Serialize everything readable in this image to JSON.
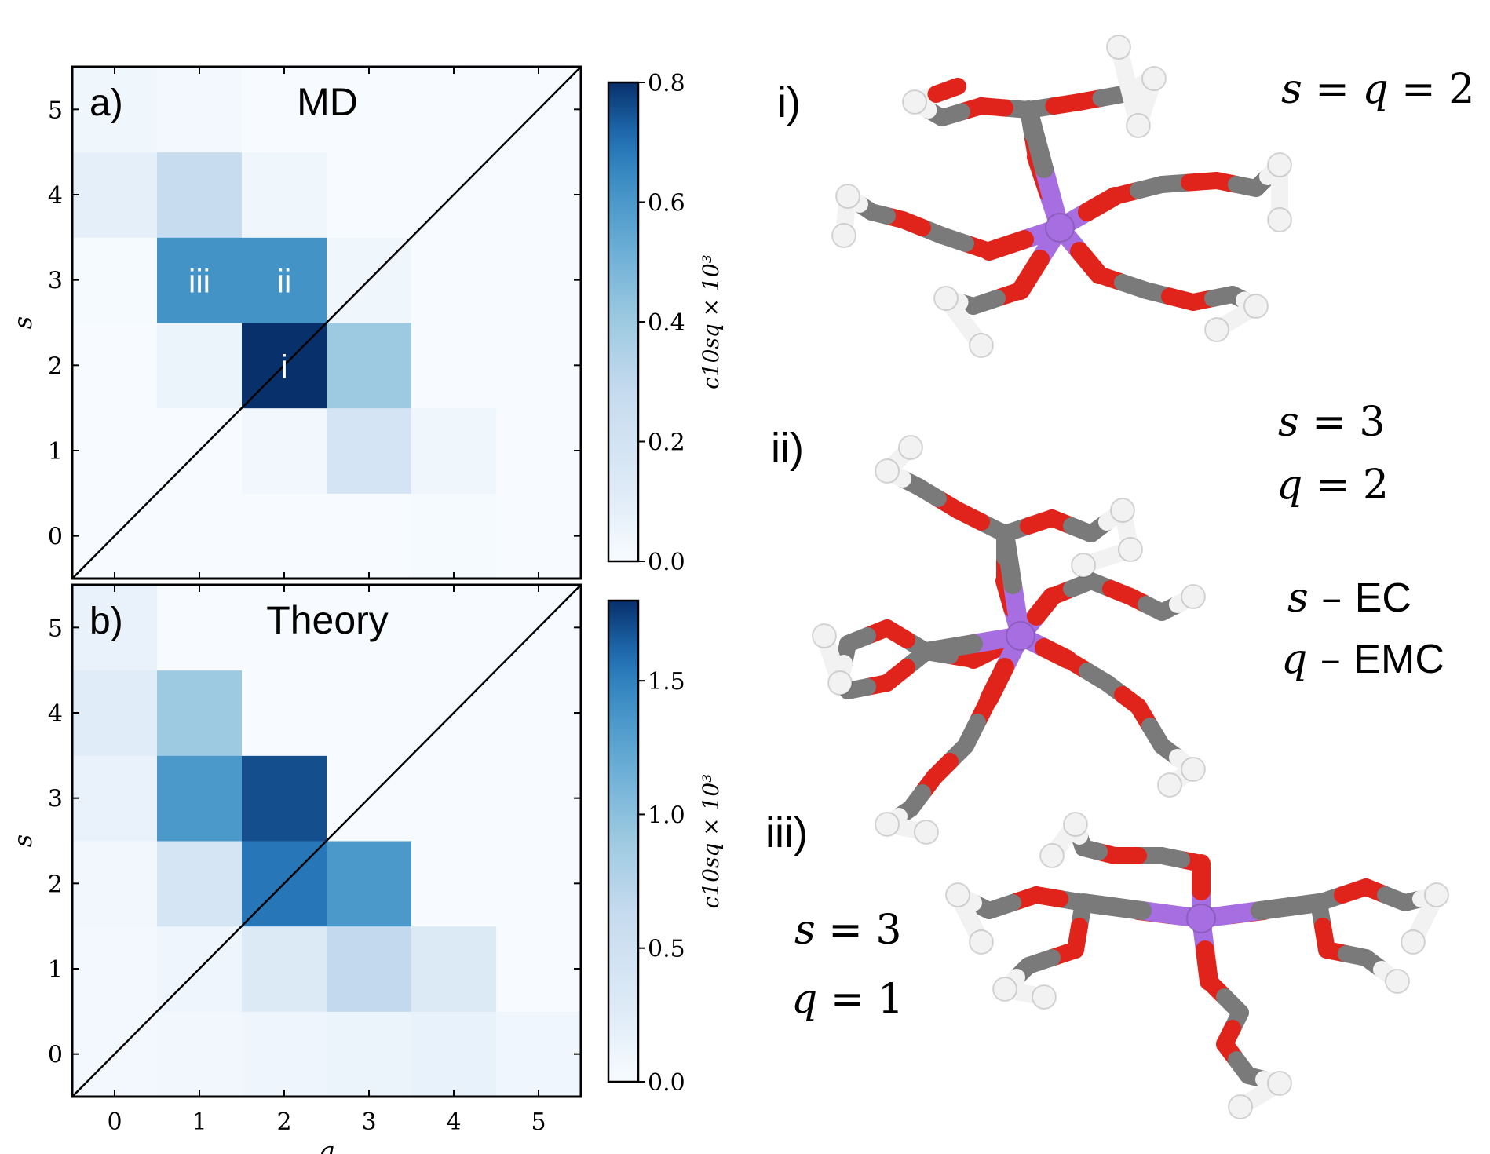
{
  "chart_data": [
    {
      "type": "heatmap",
      "panel_label": "a)",
      "title": "MD",
      "xlabel": "q",
      "ylabel": "s",
      "x_ticks": [
        "0",
        "1",
        "2",
        "3",
        "4",
        "5"
      ],
      "y_ticks": [
        "0",
        "1",
        "2",
        "3",
        "4",
        "5"
      ],
      "colorbar_label": "c10sq × 10³",
      "colorbar_ticks": [
        "0.0",
        "0.2",
        "0.4",
        "0.6",
        "0.8"
      ],
      "clim": [
        0,
        0.8
      ],
      "diagonal_line": true,
      "values_s_by_q": [
        [
          0.0,
          0.0,
          0.0,
          0.0,
          0.01,
          0.0
        ],
        [
          0.0,
          0.0,
          0.03,
          0.19,
          0.04,
          0.0
        ],
        [
          0.0,
          0.06,
          0.8,
          0.4,
          0.0,
          0.0
        ],
        [
          0.01,
          0.62,
          0.62,
          0.04,
          0.0,
          0.0
        ],
        [
          0.09,
          0.27,
          0.04,
          0.0,
          0.0,
          0.0
        ],
        [
          0.04,
          0.02,
          0.0,
          0.0,
          0.0,
          0.0
        ]
      ],
      "annotations": [
        {
          "text": "i",
          "s": 2,
          "q": 2
        },
        {
          "text": "ii",
          "s": 3,
          "q": 2
        },
        {
          "text": "iii",
          "s": 3,
          "q": 1
        }
      ]
    },
    {
      "type": "heatmap",
      "panel_label": "b)",
      "title": "Theory",
      "xlabel": "q",
      "ylabel": "s",
      "x_ticks": [
        "0",
        "1",
        "2",
        "3",
        "4",
        "5"
      ],
      "y_ticks": [
        "0",
        "1",
        "2",
        "3",
        "4",
        "5"
      ],
      "colorbar_label": "c10sq × 10³",
      "colorbar_ticks": [
        "0.0",
        "0.5",
        "1.0",
        "1.5"
      ],
      "clim": [
        0,
        1.8
      ],
      "diagonal_line": true,
      "values_s_by_q": [
        [
          0.05,
          0.06,
          0.1,
          0.12,
          0.16,
          0.08
        ],
        [
          0.05,
          0.1,
          0.3,
          0.65,
          0.3,
          0.0
        ],
        [
          0.06,
          0.4,
          1.55,
          1.35,
          0.0,
          0.0
        ],
        [
          0.15,
          1.35,
          1.7,
          0.0,
          0.0,
          0.0
        ],
        [
          0.25,
          0.9,
          0.0,
          0.0,
          0.0,
          0.0
        ],
        [
          0.15,
          0.0,
          0.0,
          0.0,
          0.0,
          0.0
        ]
      ]
    }
  ],
  "molecules": [
    {
      "label": "i)",
      "eq_lines": [
        "s = q = 2"
      ]
    },
    {
      "label": "ii)",
      "eq_lines": [
        "s = 3",
        "q = 2",
        "s – EC",
        "q – EMC"
      ]
    },
    {
      "label": "iii)",
      "eq_lines": [
        "s = 3",
        "q = 1"
      ]
    }
  ],
  "colors": {
    "cmap_low": "#f7fbff",
    "cmap_high": "#08306b",
    "oxygen": "#e0241b",
    "carbon": "#7a7a7a",
    "hydrogen": "#f2f2f2",
    "lithium": "#a66ee0"
  }
}
